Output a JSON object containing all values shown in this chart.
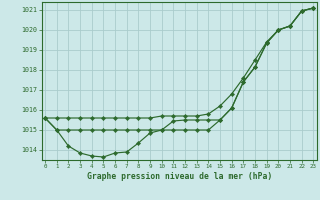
{
  "title": "Graphe pression niveau de la mer (hPa)",
  "background_color": "#cce8e8",
  "grid_color": "#aacccc",
  "line_color": "#2d6a2d",
  "x_values": [
    0,
    1,
    2,
    3,
    4,
    5,
    6,
    7,
    8,
    9,
    10,
    11,
    12,
    13,
    14,
    15,
    16,
    17,
    18,
    19,
    20,
    21,
    22,
    23
  ],
  "line1": [
    1015.6,
    1015.0,
    1014.2,
    1013.85,
    1013.7,
    1013.65,
    1013.85,
    1013.9,
    1014.35,
    1014.85,
    1015.0,
    1015.45,
    1015.5,
    1015.5,
    1015.5,
    1015.5,
    1016.1,
    1017.4,
    1018.15,
    1019.35,
    1020.0,
    1020.2,
    1020.95,
    1021.1
  ],
  "line2": [
    1015.6,
    1015.0,
    1015.0,
    1015.0,
    1015.0,
    1015.0,
    1015.0,
    1015.0,
    1015.0,
    1015.0,
    1015.0,
    1015.0,
    1015.0,
    1015.0,
    1015.0,
    1015.5,
    1016.1,
    1017.4,
    1018.15,
    1019.35,
    1020.0,
    1020.2,
    1020.95,
    1021.1
  ],
  "line3": [
    1015.6,
    1015.6,
    1015.6,
    1015.6,
    1015.6,
    1015.6,
    1015.6,
    1015.6,
    1015.6,
    1015.6,
    1015.7,
    1015.7,
    1015.7,
    1015.7,
    1015.8,
    1016.2,
    1016.8,
    1017.6,
    1018.5,
    1019.4,
    1020.0,
    1020.2,
    1020.95,
    1021.1
  ],
  "ylim": [
    1013.5,
    1021.4
  ],
  "yticks": [
    1014,
    1015,
    1016,
    1017,
    1018,
    1019,
    1020,
    1021
  ],
  "xlim": [
    -0.3,
    23.3
  ],
  "xticks": [
    0,
    1,
    2,
    3,
    4,
    5,
    6,
    7,
    8,
    9,
    10,
    11,
    12,
    13,
    14,
    15,
    16,
    17,
    18,
    19,
    20,
    21,
    22,
    23
  ]
}
